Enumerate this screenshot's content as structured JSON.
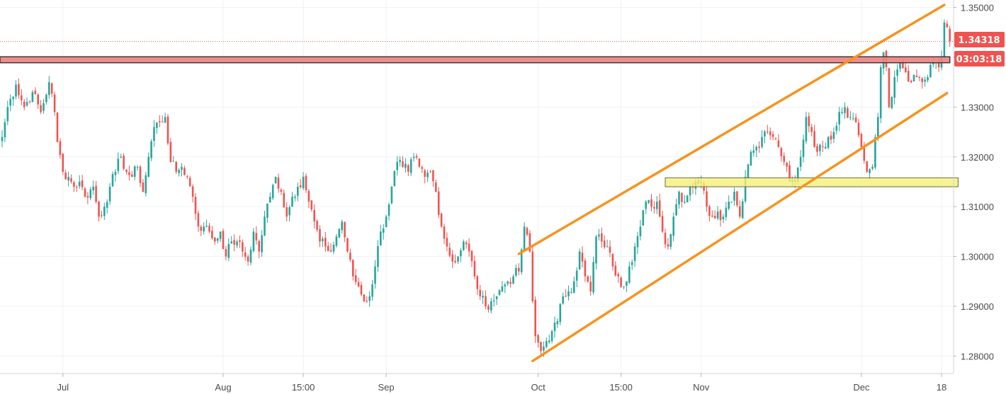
{
  "chart_data": {
    "type": "candlestick",
    "title": "",
    "xlabel": "",
    "ylabel": "",
    "ylim": [
      1.2765,
      1.3515
    ],
    "y_ticks": [
      "1.35000",
      "1.34000",
      "1.33000",
      "1.32000",
      "1.31000",
      "1.30000",
      "1.29000",
      "1.28000"
    ],
    "y_tick_values": [
      1.35,
      1.34,
      1.33,
      1.32,
      1.31,
      1.3,
      1.29,
      1.28
    ],
    "x_ticks": [
      {
        "label": "Jul",
        "i": 22
      },
      {
        "label": "Aug",
        "i": 80
      },
      {
        "label": "15:00",
        "i": 109
      },
      {
        "label": "Sep",
        "i": 139
      },
      {
        "label": "Oct",
        "i": 194
      },
      {
        "label": "15:00",
        "i": 224
      },
      {
        "label": "Nov",
        "i": 253
      },
      {
        "label": "Dec",
        "i": 311
      },
      {
        "label": "18",
        "i": 340
      }
    ],
    "grid": true,
    "current_price": "1.34318",
    "countdown": "03:03:18",
    "up_color": "#26a69a",
    "down_color": "#ef5350",
    "resistance_zone": {
      "color": "#f08080",
      "from": 1.3389,
      "to": 1.3401,
      "i_from": 0,
      "i_to": 343
    },
    "support_zone": {
      "color": "#f5f07a",
      "from": 1.314,
      "to": 1.3158,
      "i_from": 240,
      "i_to": 346
    },
    "channel_color": "#f7931e",
    "channel_upper": {
      "i_from": 187,
      "from": 1.3005,
      "i_to": 341,
      "to": 1.3505
    },
    "channel_lower": {
      "i_from": 192,
      "from": 1.279,
      "i_to": 342,
      "to": 1.3328
    },
    "candle_count": 344,
    "anchors": [
      [
        0,
        1.324
      ],
      [
        2,
        1.33
      ],
      [
        5,
        1.3345
      ],
      [
        8,
        1.33
      ],
      [
        11,
        1.333
      ],
      [
        14,
        1.329
      ],
      [
        17,
        1.335
      ],
      [
        19,
        1.329
      ],
      [
        20,
        1.323
      ],
      [
        22,
        1.317
      ],
      [
        24,
        1.316
      ],
      [
        26,
        1.314
      ],
      [
        28,
        1.315
      ],
      [
        30,
        1.312
      ],
      [
        33,
        1.314
      ],
      [
        35,
        1.308
      ],
      [
        37,
        1.31
      ],
      [
        39,
        1.314
      ],
      [
        41,
        1.317
      ],
      [
        43,
        1.32
      ],
      [
        45,
        1.317
      ],
      [
        47,
        1.316
      ],
      [
        49,
        1.318
      ],
      [
        51,
        1.313
      ],
      [
        53,
        1.32
      ],
      [
        55,
        1.326
      ],
      [
        57,
        1.327
      ],
      [
        59,
        1.328
      ],
      [
        61,
        1.319
      ],
      [
        63,
        1.317
      ],
      [
        65,
        1.318
      ],
      [
        67,
        1.316
      ],
      [
        69,
        1.312
      ],
      [
        71,
        1.306
      ],
      [
        73,
        1.306
      ],
      [
        75,
        1.305
      ],
      [
        77,
        1.303
      ],
      [
        79,
        1.305
      ],
      [
        81,
        1.3
      ],
      [
        83,
        1.303
      ],
      [
        85,
        1.303
      ],
      [
        87,
        1.301
      ],
      [
        89,
        1.299
      ],
      [
        91,
        1.305
      ],
      [
        93,
        1.301
      ],
      [
        95,
        1.308
      ],
      [
        97,
        1.312
      ],
      [
        99,
        1.316
      ],
      [
        101,
        1.313
      ],
      [
        103,
        1.308
      ],
      [
        105,
        1.312
      ],
      [
        107,
        1.314
      ],
      [
        109,
        1.316
      ],
      [
        111,
        1.311
      ],
      [
        113,
        1.307
      ],
      [
        115,
        1.303
      ],
      [
        117,
        1.302
      ],
      [
        119,
        1.301
      ],
      [
        121,
        1.304
      ],
      [
        123,
        1.307
      ],
      [
        125,
        1.301
      ],
      [
        127,
        1.296
      ],
      [
        129,
        1.294
      ],
      [
        131,
        1.291
      ],
      [
        133,
        1.292
      ],
      [
        135,
        1.298
      ],
      [
        137,
        1.305
      ],
      [
        139,
        1.308
      ],
      [
        141,
        1.314
      ],
      [
        143,
        1.319
      ],
      [
        145,
        1.318
      ],
      [
        147,
        1.317
      ],
      [
        149,
        1.32
      ],
      [
        151,
        1.318
      ],
      [
        153,
        1.316
      ],
      [
        155,
        1.317
      ],
      [
        157,
        1.313
      ],
      [
        159,
        1.306
      ],
      [
        161,
        1.302
      ],
      [
        163,
        1.299
      ],
      [
        165,
        1.3
      ],
      [
        167,
        1.303
      ],
      [
        169,
        1.301
      ],
      [
        171,
        1.296
      ],
      [
        173,
        1.292
      ],
      [
        175,
        1.29
      ],
      [
        177,
        1.291
      ],
      [
        179,
        1.292
      ],
      [
        181,
        1.294
      ],
      [
        183,
        1.295
      ],
      [
        185,
        1.296
      ],
      [
        187,
        1.297
      ],
      [
        189,
        1.306
      ],
      [
        191,
        1.301
      ],
      [
        192,
        1.291
      ],
      [
        193,
        1.284
      ],
      [
        195,
        1.281
      ],
      [
        197,
        1.283
      ],
      [
        199,
        1.285
      ],
      [
        201,
        1.287
      ],
      [
        203,
        1.292
      ],
      [
        205,
        1.293
      ],
      [
        207,
        1.295
      ],
      [
        209,
        1.301
      ],
      [
        211,
        1.296
      ],
      [
        213,
        1.293
      ],
      [
        215,
        1.304
      ],
      [
        217,
        1.303
      ],
      [
        219,
        1.302
      ],
      [
        221,
        1.298
      ],
      [
        223,
        1.296
      ],
      [
        225,
        1.294
      ],
      [
        227,
        1.298
      ],
      [
        229,
        1.302
      ],
      [
        231,
        1.306
      ],
      [
        233,
        1.311
      ],
      [
        235,
        1.31
      ],
      [
        237,
        1.311
      ],
      [
        239,
        1.305
      ],
      [
        241,
        1.302
      ],
      [
        243,
        1.308
      ],
      [
        245,
        1.313
      ],
      [
        247,
        1.311
      ],
      [
        249,
        1.314
      ],
      [
        251,
        1.315
      ],
      [
        253,
        1.315
      ],
      [
        255,
        1.31
      ],
      [
        257,
        1.308
      ],
      [
        259,
        1.309
      ],
      [
        261,
        1.308
      ],
      [
        263,
        1.311
      ],
      [
        265,
        1.313
      ],
      [
        267,
        1.308
      ],
      [
        269,
        1.316
      ],
      [
        271,
        1.321
      ],
      [
        273,
        1.322
      ],
      [
        275,
        1.324
      ],
      [
        277,
        1.325
      ],
      [
        279,
        1.324
      ],
      [
        281,
        1.322
      ],
      [
        283,
        1.319
      ],
      [
        285,
        1.315
      ],
      [
        287,
        1.315
      ],
      [
        289,
        1.32
      ],
      [
        291,
        1.328
      ],
      [
        293,
        1.325
      ],
      [
        295,
        1.321
      ],
      [
        297,
        1.322
      ],
      [
        299,
        1.324
      ],
      [
        301,
        1.325
      ],
      [
        303,
        1.329
      ],
      [
        305,
        1.33
      ],
      [
        307,
        1.328
      ],
      [
        309,
        1.327
      ],
      [
        311,
        1.322
      ],
      [
        313,
        1.317
      ],
      [
        315,
        1.318
      ],
      [
        317,
        1.328
      ],
      [
        318,
        1.338
      ],
      [
        319,
        1.341
      ],
      [
        320,
        1.338
      ],
      [
        321,
        1.33
      ],
      [
        322,
        1.332
      ],
      [
        323,
        1.336
      ],
      [
        325,
        1.339
      ],
      [
        327,
        1.337
      ],
      [
        329,
        1.335
      ],
      [
        331,
        1.336
      ],
      [
        333,
        1.335
      ],
      [
        335,
        1.336
      ],
      [
        337,
        1.339
      ],
      [
        339,
        1.338
      ],
      [
        340,
        1.34
      ],
      [
        341,
        1.347
      ],
      [
        342,
        1.346
      ],
      [
        343,
        1.3432
      ]
    ]
  }
}
